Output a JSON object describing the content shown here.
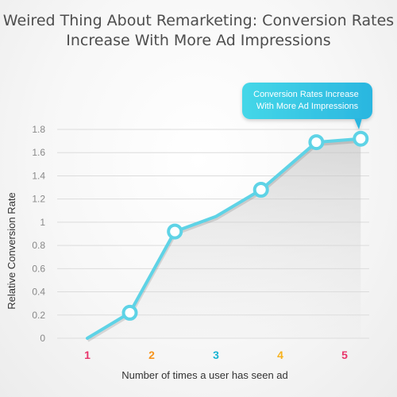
{
  "chart_data": {
    "type": "line",
    "title_lines": [
      "Weired Thing About Remarketing: Conversion Rates",
      "Increase With More Ad Impressions"
    ],
    "xlabel": "Number of times a user has seen ad",
    "ylabel": "Relative Conversion Rate",
    "ylim": [
      0,
      1.8
    ],
    "yticks": [
      "0",
      "0.2",
      "0.4",
      "0.6",
      "0.8",
      "1",
      "1.2",
      "1.4",
      "1.6",
      "1.8"
    ],
    "xticks": [
      "1",
      "2",
      "3",
      "4",
      "5"
    ],
    "xtick_colors": [
      "#e8356b",
      "#f7941d",
      "#1ab4d4",
      "#f7b21d",
      "#e8356b"
    ],
    "x": [
      1,
      1.66,
      2.36,
      3,
      3.7,
      4.56,
      5.25
    ],
    "y": [
      0,
      0.22,
      0.92,
      1.05,
      1.28,
      1.69,
      1.72
    ],
    "marked_points": [
      false,
      true,
      true,
      false,
      true,
      true,
      true
    ],
    "grid": true,
    "line_color": "#5ed3e6",
    "callout": "Conversion Rates Increase With More Ad Impressions",
    "callout_color": "#3cc6e3"
  }
}
